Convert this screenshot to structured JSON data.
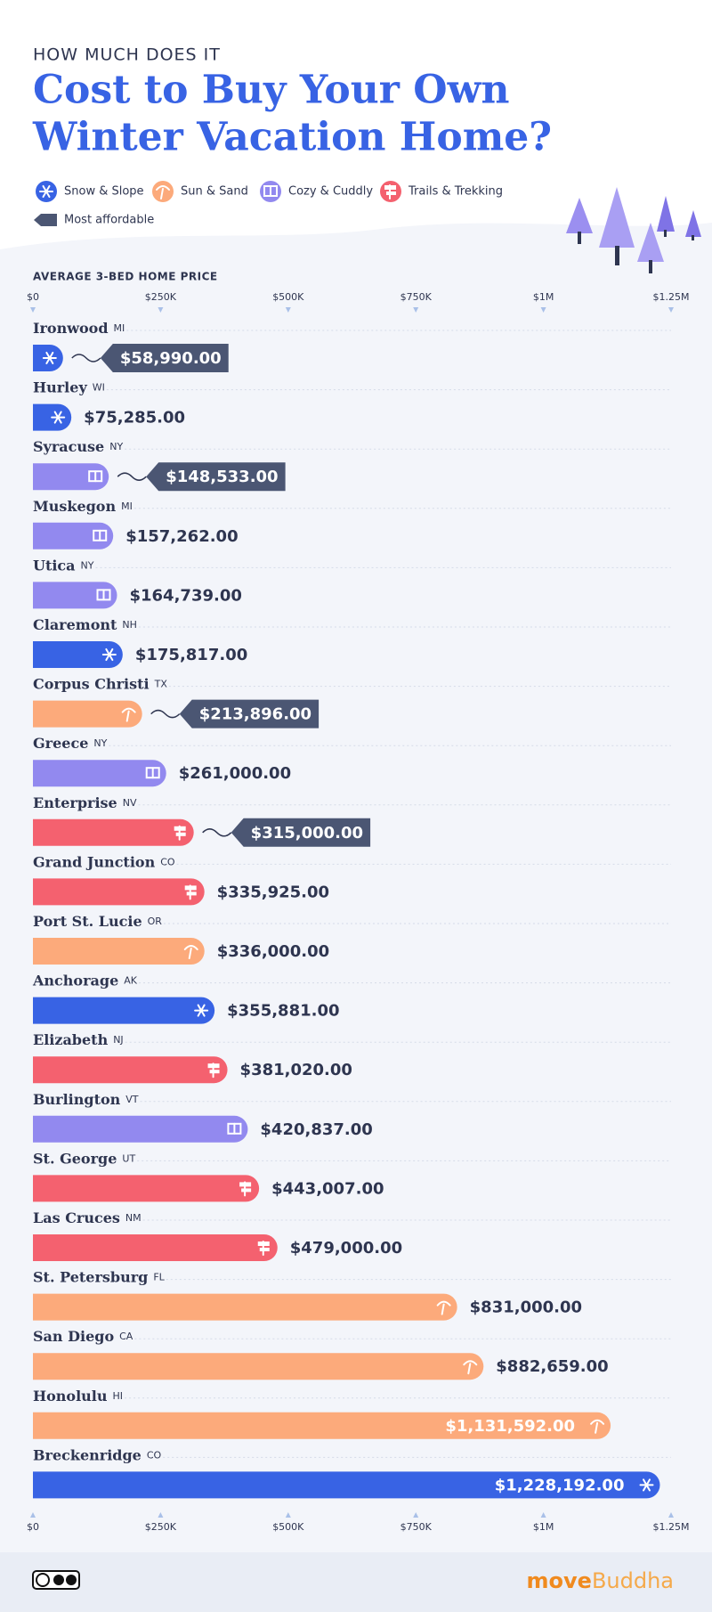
{
  "chart_data": {
    "type": "bar",
    "orientation": "horizontal",
    "supertitle": "HOW MUCH DOES IT",
    "title_lines": [
      "Cost to Buy Your Own",
      "Winter Vacation Home?"
    ],
    "x_label": "AVERAGE 3-BED HOME PRICE",
    "categories": [
      "Ironwood",
      "Hurley",
      "Syracuse",
      "Muskegon",
      "Utica",
      "Claremont",
      "Corpus Christi",
      "Greece",
      "Enterprise",
      "Grand Junction",
      "Port St. Lucie",
      "Anchorage",
      "Elizabeth",
      "Burlington",
      "St. George",
      "Las Cruces",
      "St. Petersburg",
      "San Diego",
      "Honolulu",
      "Breckenridge"
    ],
    "states": [
      "MI",
      "WI",
      "NY",
      "MI",
      "NY",
      "NH",
      "TX",
      "NY",
      "NV",
      "CO",
      "OR",
      "AK",
      "NJ",
      "VT",
      "UT",
      "NM",
      "FL",
      "CA",
      "HI",
      "CO"
    ],
    "series": [
      {
        "name": "Snow & Slope",
        "color": "#3863e4",
        "values": [
          58990,
          75285,
          null,
          null,
          null,
          175817,
          null,
          null,
          null,
          null,
          null,
          355881,
          null,
          null,
          null,
          null,
          null,
          null,
          null,
          1228192
        ],
        "value_labels": [
          "$58,990.00",
          "$75,285.00",
          null,
          null,
          null,
          "$175,817.00",
          null,
          null,
          null,
          null,
          null,
          "$355,881.00",
          null,
          null,
          null,
          null,
          null,
          null,
          null,
          "$1,228,192.00"
        ]
      },
      {
        "name": "Sun & Sand",
        "color": "#fcaa7b",
        "values": [
          null,
          null,
          null,
          null,
          null,
          null,
          213896,
          null,
          null,
          null,
          336000,
          null,
          null,
          null,
          null,
          null,
          831000,
          882659,
          1131592,
          null
        ],
        "value_labels": [
          null,
          null,
          null,
          null,
          null,
          null,
          "$213,896.00",
          null,
          null,
          null,
          "$336,000.00",
          null,
          null,
          null,
          null,
          null,
          "$831,000.00",
          "$882,659.00",
          "$1,131,592.00",
          null
        ]
      },
      {
        "name": "Cozy & Cuddly",
        "color": "#9289ef",
        "values": [
          null,
          null,
          148533,
          157262,
          164739,
          null,
          null,
          261000,
          null,
          null,
          null,
          null,
          null,
          420837,
          null,
          null,
          null,
          null,
          null,
          null
        ],
        "value_labels": [
          null,
          null,
          "$148,533.00",
          "$157,262.00",
          "$164,739.00",
          null,
          null,
          "$261,000.00",
          null,
          null,
          null,
          null,
          null,
          "$420,837.00",
          null,
          null,
          null,
          null,
          null,
          null
        ]
      },
      {
        "name": "Trails & Trekking",
        "color": "#f4616f",
        "values": [
          null,
          null,
          null,
          null,
          null,
          null,
          null,
          null,
          315000,
          335925,
          null,
          null,
          381020,
          null,
          443007,
          479000,
          null,
          null,
          null,
          null
        ],
        "value_labels": [
          null,
          null,
          null,
          null,
          null,
          null,
          null,
          null,
          "$315,000.00",
          "$335,925.00",
          null,
          null,
          "$381,020.00",
          null,
          "$443,007.00",
          "$479,000.00",
          null,
          null,
          null,
          null
        ]
      }
    ],
    "highlight": {
      "label": "Most affordable",
      "color": "#4b5673",
      "flags": [
        true,
        false,
        true,
        false,
        false,
        false,
        true,
        false,
        true,
        false,
        false,
        false,
        false,
        false,
        false,
        false,
        false,
        false,
        false,
        false
      ]
    },
    "xlim": [
      0,
      1250000
    ],
    "xticks": [
      {
        "value": 0,
        "label": "$0"
      },
      {
        "value": 250000,
        "label": "$250K"
      },
      {
        "value": 500000,
        "label": "$500K"
      },
      {
        "value": 750000,
        "label": "$750K"
      },
      {
        "value": 1000000,
        "label": "$1M"
      },
      {
        "value": 1250000,
        "label": "$1.25M"
      }
    ],
    "brand": [
      "move",
      "Buddha"
    ]
  }
}
